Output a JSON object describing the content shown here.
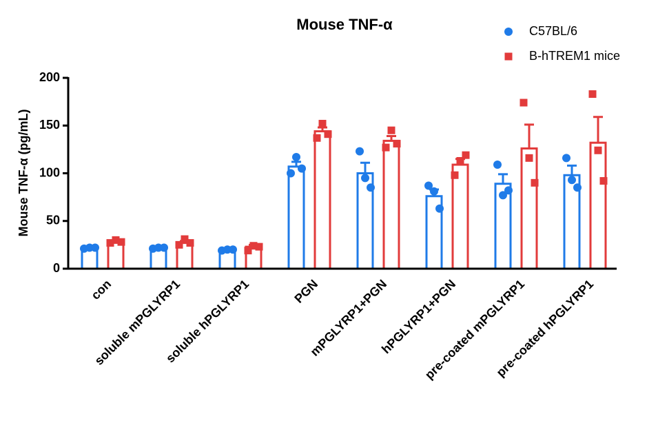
{
  "chart_data": {
    "type": "bar",
    "title": "Mouse TNF-α",
    "y_label": "Mouse TNF-α (pg/mL)",
    "categories": [
      "con",
      "soluble mPGLYRP1",
      "soluble hPGLYRP1",
      "PGN",
      "mPGLYRP1+PGN",
      "hPGLYRP1+PGN",
      "pre-coated mPGLYRP1",
      "pre-coated hPGLYRP1"
    ],
    "series": [
      {
        "name": "C57BL/6",
        "color": "#1f7be8",
        "marker": "circle",
        "values": [
          21,
          21,
          19,
          107,
          100,
          76,
          89,
          98
        ],
        "errors": [
          1,
          1,
          1,
          5,
          11,
          7,
          10,
          10
        ],
        "points": [
          [
            21,
            22,
            22
          ],
          [
            21,
            22,
            22
          ],
          [
            19,
            20,
            20
          ],
          [
            100,
            117,
            105
          ],
          [
            123,
            95,
            85
          ],
          [
            87,
            81,
            63
          ],
          [
            109,
            77,
            82
          ],
          [
            116,
            93,
            85
          ]
        ]
      },
      {
        "name": "B-hTREM1 mice",
        "color": "#e23b3b",
        "marker": "square",
        "values": [
          28,
          27,
          23,
          144,
          134,
          109,
          126,
          132
        ],
        "errors": [
          1,
          2,
          2,
          4,
          5,
          6,
          25,
          27
        ],
        "points": [
          [
            27,
            30,
            28
          ],
          [
            25,
            31,
            27
          ],
          [
            19,
            24,
            23
          ],
          [
            137,
            152,
            141
          ],
          [
            127,
            145,
            131
          ],
          [
            98,
            113,
            119
          ],
          [
            174,
            116,
            90
          ],
          [
            183,
            124,
            92
          ]
        ]
      }
    ],
    "ylim": [
      0,
      200
    ],
    "yticks": [
      0,
      50,
      100,
      150,
      200
    ]
  }
}
